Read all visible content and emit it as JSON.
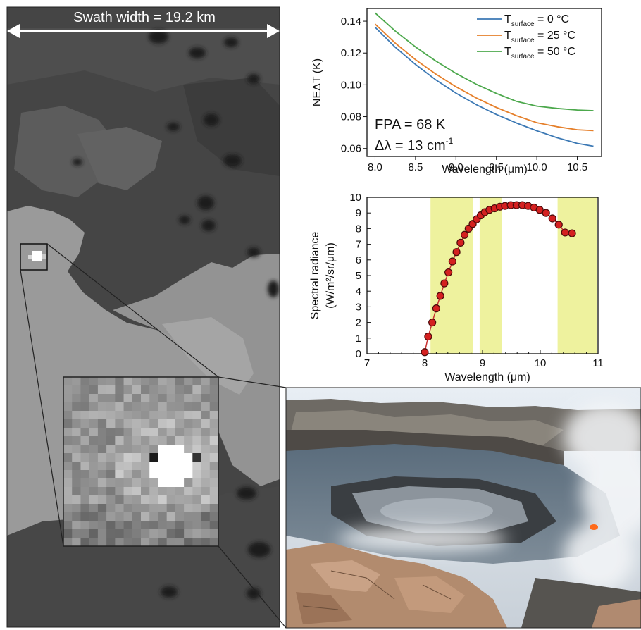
{
  "panel_a": {
    "swath_label": "Swath width  = 19.2 km"
  },
  "chart_data": [
    {
      "type": "line",
      "title": "",
      "xlabel": "Wavelength (μm)",
      "ylabel": "NEΔT (K)",
      "xlim": [
        7.9,
        10.8
      ],
      "ylim": [
        0.055,
        0.148
      ],
      "xticks": [
        "8.0",
        "8.5",
        "9.0",
        "9.5",
        "10.0",
        "10.5"
      ],
      "xtick_values": [
        8.0,
        8.5,
        9.0,
        9.5,
        10.0,
        10.5
      ],
      "yticks": [
        "0.06",
        "0.08",
        "0.10",
        "0.12",
        "0.14"
      ],
      "ytick_values": [
        0.06,
        0.08,
        0.1,
        0.12,
        0.14
      ],
      "legend_position": "top-right",
      "annotation_fpa": "FPA = 68 K",
      "annotation_dl": "Δλ = 13 cm",
      "annotation_dl_sup": "-1",
      "x": [
        8.0,
        8.25,
        8.5,
        8.75,
        9.0,
        9.25,
        9.5,
        9.75,
        10.0,
        10.25,
        10.5,
        10.7
      ],
      "series": [
        {
          "name_main": "T",
          "name_sub": "surface",
          "name_rest": " = 0 °C",
          "color": "#3b78b4",
          "values": [
            0.1362,
            0.1236,
            0.1128,
            0.1032,
            0.0948,
            0.0876,
            0.0814,
            0.076,
            0.0711,
            0.0668,
            0.0632,
            0.0614
          ]
        },
        {
          "name_main": "T",
          "name_sub": "surface",
          "name_rest": " = 25 °C",
          "color": "#e57f2a",
          "values": [
            0.1382,
            0.1262,
            0.1158,
            0.1068,
            0.0988,
            0.0918,
            0.0858,
            0.0806,
            0.0762,
            0.0737,
            0.0718,
            0.0712
          ]
        },
        {
          "name_main": "T",
          "name_sub": "surface",
          "name_rest": " = 50 °C",
          "color": "#4ca84c",
          "values": [
            0.1452,
            0.1338,
            0.1238,
            0.115,
            0.1072,
            0.1004,
            0.0946,
            0.0896,
            0.0866,
            0.0852,
            0.0842,
            0.0838
          ]
        }
      ]
    },
    {
      "type": "scatter",
      "title": "",
      "xlabel": "Wavelength (μm)",
      "ylabel_line1": "Spectral radiance",
      "ylabel_line2": "(W/m²/sr/μm)",
      "xlim": [
        7,
        11
      ],
      "ylim": [
        0,
        10
      ],
      "xticks": [
        "7",
        "8",
        "9",
        "10",
        "11"
      ],
      "xtick_values": [
        7,
        8,
        9,
        10,
        11
      ],
      "yticks": [
        "0",
        "1",
        "2",
        "3",
        "4",
        "5",
        "6",
        "7",
        "8",
        "9",
        "10"
      ],
      "ytick_values": [
        0,
        1,
        2,
        3,
        4,
        5,
        6,
        7,
        8,
        9,
        10
      ],
      "bands": [
        [
          8.1,
          8.83
        ],
        [
          8.95,
          9.33
        ],
        [
          10.3,
          10.98
        ]
      ],
      "band_color": "#eef29e",
      "marker_color": "#d42020",
      "line_color": "#c83030",
      "x": [
        8.0,
        8.06,
        8.13,
        8.2,
        8.27,
        8.34,
        8.41,
        8.48,
        8.55,
        8.62,
        8.69,
        8.76,
        8.83,
        8.9,
        8.97,
        9.04,
        9.12,
        9.21,
        9.3,
        9.39,
        9.49,
        9.59,
        9.69,
        9.79,
        9.89,
        9.99,
        10.1,
        10.21,
        10.32,
        10.43,
        10.55
      ],
      "y": [
        0.1,
        1.1,
        2.0,
        2.9,
        3.7,
        4.5,
        5.2,
        5.9,
        6.5,
        7.1,
        7.6,
        8.0,
        8.3,
        8.6,
        8.85,
        9.05,
        9.2,
        9.3,
        9.4,
        9.45,
        9.5,
        9.5,
        9.5,
        9.45,
        9.35,
        9.2,
        9.0,
        8.65,
        8.25,
        7.75,
        7.7
      ]
    }
  ]
}
